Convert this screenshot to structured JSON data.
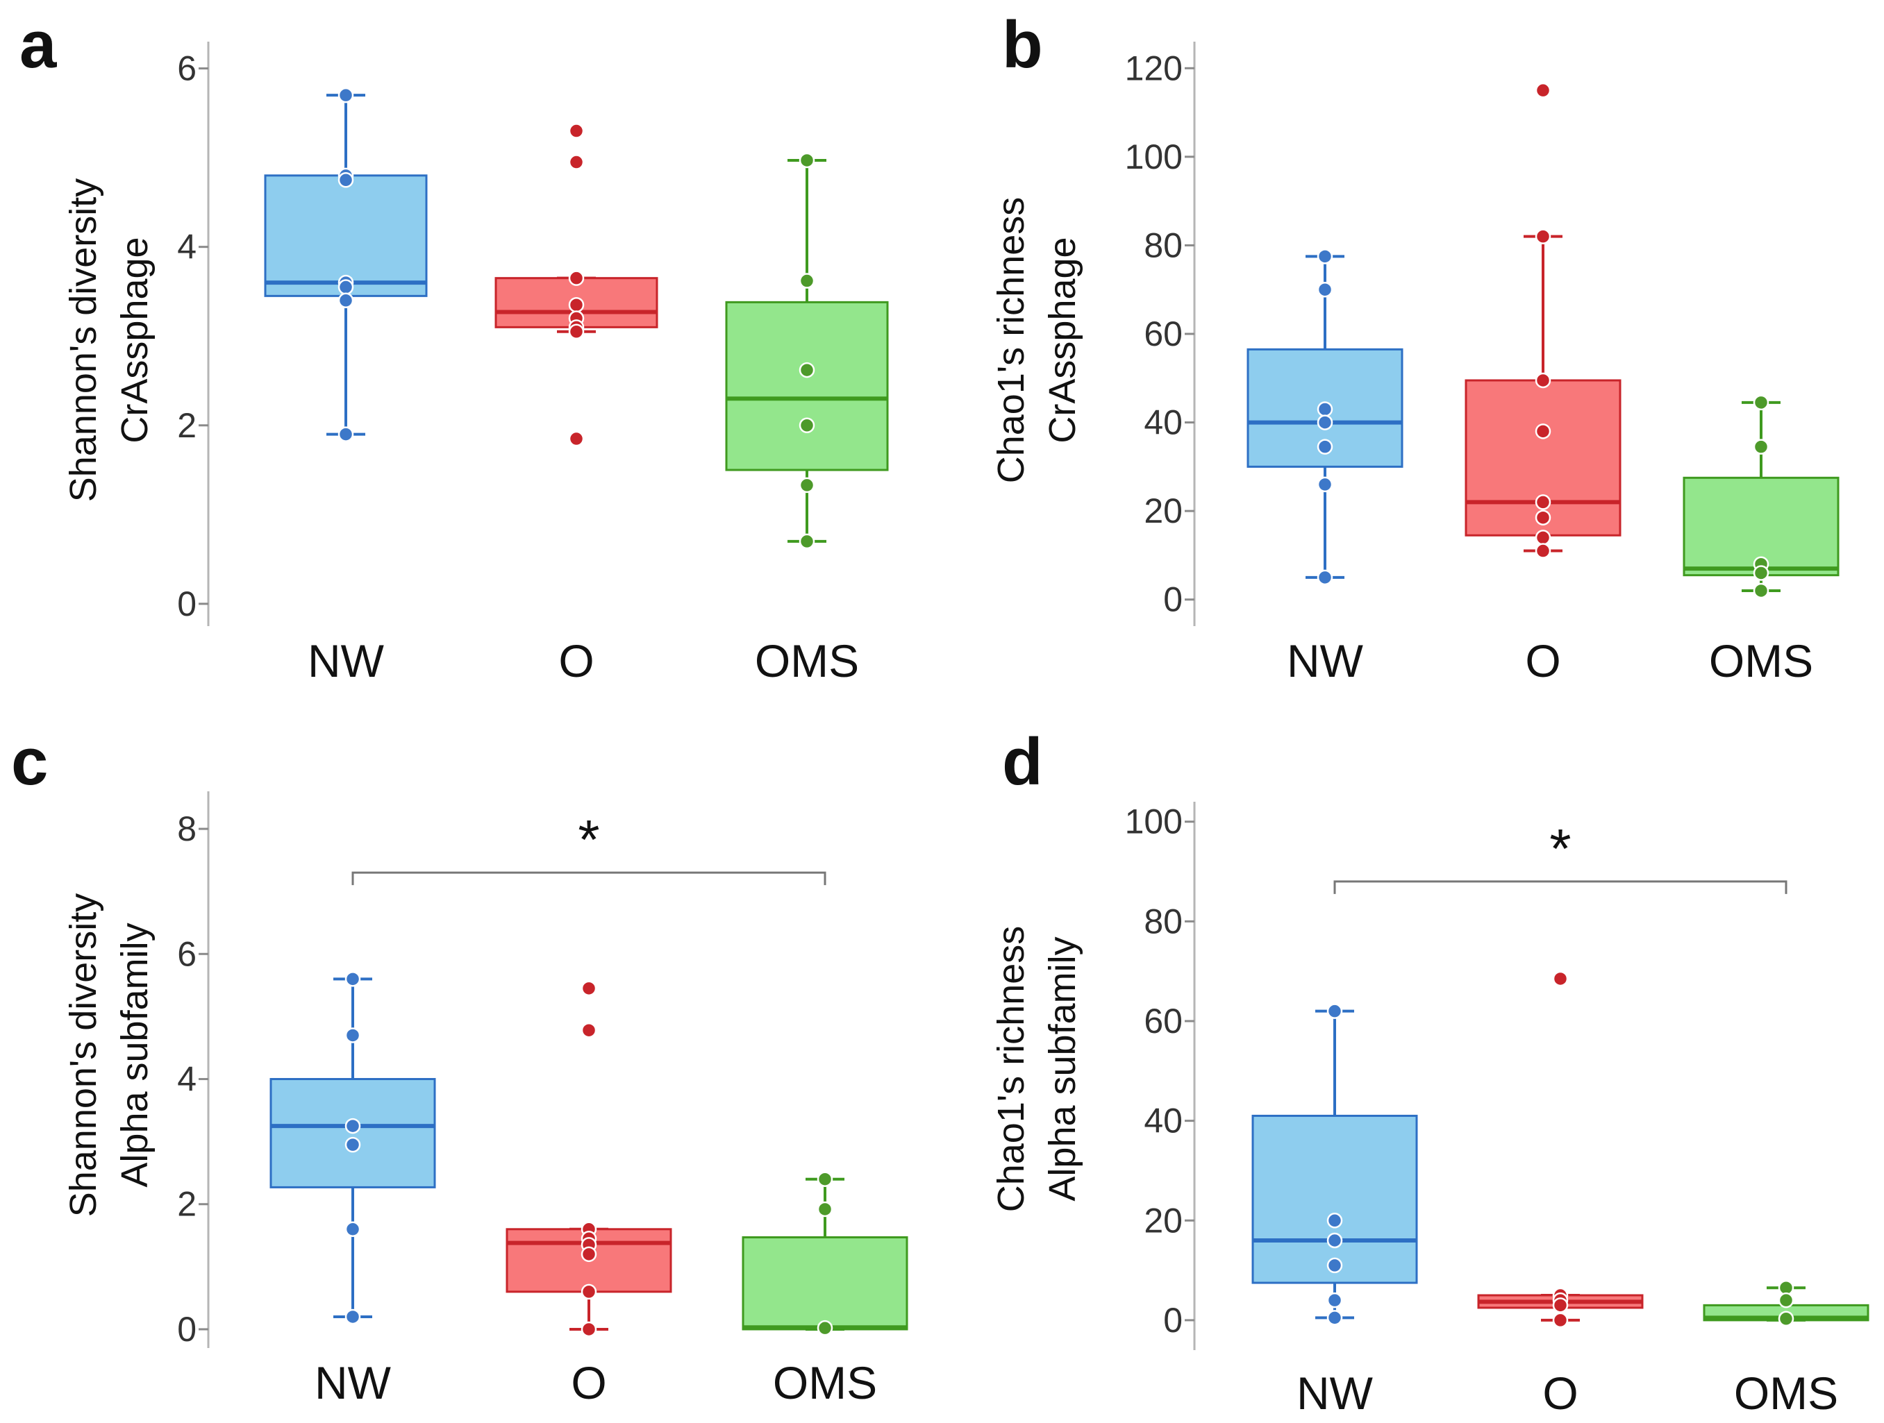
{
  "chart_data": [
    {
      "panel": "a",
      "type": "box",
      "ylabel": [
        "Shannon's diversity",
        "CrAssphage"
      ],
      "ylim": [
        -0.25,
        6.3
      ],
      "yticks": [
        0,
        2,
        4,
        6
      ],
      "categories": [
        "NW",
        "O",
        "OMS"
      ],
      "boxes": [
        {
          "name": "NW",
          "min": 1.9,
          "q1": 3.45,
          "median": 3.6,
          "q3": 4.8,
          "max": 5.7,
          "points": [
            5.7,
            4.8,
            4.75,
            3.6,
            3.55,
            3.4,
            1.9
          ]
        },
        {
          "name": "O",
          "min": 3.05,
          "q1": 3.1,
          "median": 3.27,
          "q3": 3.65,
          "max": 3.65,
          "points": [
            5.3,
            4.95,
            3.65,
            3.35,
            3.2,
            3.1,
            3.05,
            1.85
          ],
          "outliers": [
            5.3,
            4.95,
            1.85
          ]
        },
        {
          "name": "OMS",
          "min": 0.7,
          "q1": 1.5,
          "median": 2.3,
          "q3": 3.38,
          "max": 4.97,
          "points": [
            4.97,
            3.62,
            2.62,
            2.0,
            1.33,
            0.7
          ]
        }
      ],
      "significance": null
    },
    {
      "panel": "b",
      "type": "box",
      "ylabel": [
        "Chao1's richness",
        "CrAssphage"
      ],
      "ylim": [
        -6,
        126
      ],
      "yticks": [
        0,
        20,
        40,
        60,
        80,
        100,
        120
      ],
      "categories": [
        "NW",
        "O",
        "OMS"
      ],
      "boxes": [
        {
          "name": "NW",
          "min": 5,
          "q1": 30,
          "median": 40,
          "q3": 56.5,
          "max": 77.5,
          "points": [
            77.5,
            70,
            43,
            40,
            34.5,
            26,
            5
          ]
        },
        {
          "name": "O",
          "min": 11,
          "q1": 14.5,
          "median": 22,
          "q3": 49.5,
          "max": 82,
          "points": [
            115,
            82,
            49.5,
            38,
            22,
            18.5,
            14,
            11
          ],
          "outliers": [
            115
          ]
        },
        {
          "name": "OMS",
          "min": 2,
          "q1": 5.5,
          "median": 7,
          "q3": 27.5,
          "max": 44.5,
          "points": [
            44.5,
            34.5,
            8,
            6,
            2
          ]
        }
      ],
      "significance": null
    },
    {
      "panel": "c",
      "type": "box",
      "ylabel": [
        "Shannon's diversity",
        "Alpha subfamily"
      ],
      "ylim": [
        -0.3,
        8.6
      ],
      "yticks": [
        0,
        2,
        4,
        6,
        8
      ],
      "categories": [
        "NW",
        "O",
        "OMS"
      ],
      "boxes": [
        {
          "name": "NW",
          "min": 0.2,
          "q1": 2.27,
          "median": 3.25,
          "q3": 4.0,
          "max": 5.6,
          "points": [
            5.6,
            4.7,
            3.25,
            2.95,
            1.6,
            0.2
          ]
        },
        {
          "name": "O",
          "min": 0.0,
          "q1": 0.6,
          "median": 1.38,
          "q3": 1.6,
          "max": 1.6,
          "points": [
            5.45,
            4.78,
            1.6,
            1.45,
            1.35,
            1.2,
            0.6,
            0.0
          ],
          "outliers": [
            5.45,
            4.78
          ]
        },
        {
          "name": "OMS",
          "min": 0.0,
          "q1": 0.0,
          "median": 0.03,
          "q3": 1.47,
          "max": 2.4,
          "points": [
            2.4,
            1.92,
            0.02
          ]
        }
      ],
      "significance": {
        "from": "NW",
        "to": "OMS",
        "label": "*",
        "y": 7.3
      }
    },
    {
      "panel": "d",
      "type": "box",
      "ylabel": [
        "Chao1's richness",
        "Alpha subfamily"
      ],
      "ylim": [
        -6,
        104
      ],
      "yticks": [
        0,
        20,
        40,
        60,
        80,
        100
      ],
      "categories": [
        "NW",
        "O",
        "OMS"
      ],
      "boxes": [
        {
          "name": "NW",
          "min": 0.5,
          "q1": 7.5,
          "median": 16,
          "q3": 41,
          "max": 62,
          "points": [
            62,
            20,
            16,
            11,
            4,
            0.5
          ]
        },
        {
          "name": "O",
          "min": 0,
          "q1": 2.5,
          "median": 3.7,
          "q3": 5,
          "max": 5,
          "points": [
            68.5,
            5,
            4,
            3,
            0
          ],
          "outliers": [
            68.5
          ]
        },
        {
          "name": "OMS",
          "min": 0,
          "q1": 0,
          "median": 0.5,
          "q3": 3,
          "max": 6.5,
          "points": [
            6.5,
            4,
            0.3
          ]
        }
      ],
      "significance": {
        "from": "NW",
        "to": "OMS",
        "label": "*",
        "y": 88
      }
    }
  ],
  "colors": {
    "NW": {
      "fill": "#8ecdee",
      "line": "#2d6fc4",
      "point": "#3d78c9"
    },
    "O": {
      "fill": "#f8787a",
      "line": "#c8242a",
      "point": "#c8242a"
    },
    "OMS": {
      "fill": "#93e68c",
      "line": "#3f9a1f",
      "point": "#4d9a2a"
    }
  }
}
